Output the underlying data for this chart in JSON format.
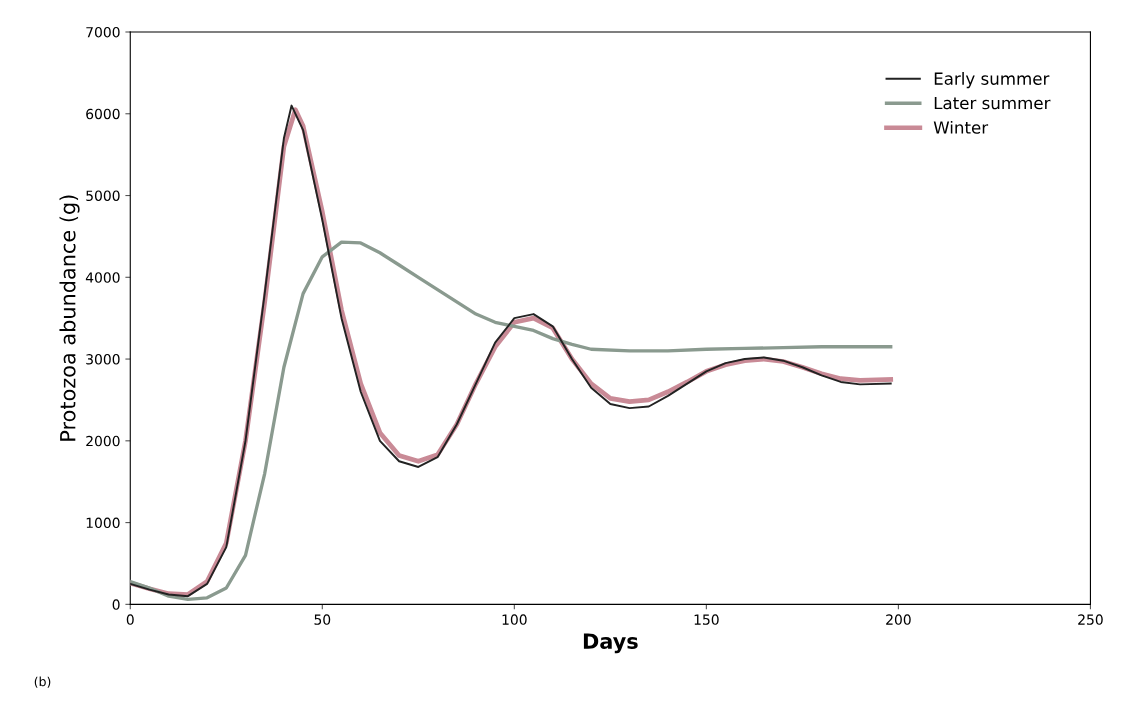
{
  "chart_data": {
    "type": "line",
    "xlabel": "Days",
    "ylabel": "Protozoa abundance (g)",
    "annotations": [
      "(b)"
    ],
    "xlim": [
      0,
      250
    ],
    "xticks": [
      0,
      50,
      100,
      150,
      200,
      250
    ],
    "ylim": [
      0,
      7000
    ],
    "yticks": [
      0,
      1000,
      2000,
      3000,
      4000,
      5000,
      6000,
      7000
    ],
    "grid": false,
    "legend": "top right",
    "series": [
      {
        "name": "Early summer",
        "color": "#222222",
        "x": [
          0,
          5,
          10,
          15,
          20,
          25,
          30,
          35,
          40,
          42,
          45,
          50,
          55,
          60,
          65,
          70,
          75,
          80,
          85,
          90,
          95,
          100,
          105,
          110,
          115,
          120,
          125,
          130,
          135,
          140,
          145,
          150,
          155,
          160,
          165,
          170,
          175,
          180,
          185,
          190,
          198
        ],
        "values": [
          250,
          180,
          120,
          100,
          250,
          700,
          2000,
          3800,
          5700,
          6100,
          5800,
          4700,
          3500,
          2600,
          2000,
          1750,
          1680,
          1800,
          2200,
          2700,
          3200,
          3500,
          3550,
          3400,
          3000,
          2650,
          2450,
          2400,
          2420,
          2550,
          2700,
          2850,
          2950,
          3000,
          3020,
          2980,
          2900,
          2800,
          2720,
          2690,
          2700
        ]
      },
      {
        "name": "Later summer",
        "color": "#8a9a8f",
        "x": [
          0,
          5,
          10,
          15,
          20,
          25,
          30,
          35,
          40,
          45,
          50,
          55,
          60,
          65,
          70,
          75,
          80,
          85,
          90,
          95,
          100,
          105,
          110,
          115,
          120,
          130,
          140,
          150,
          160,
          170,
          180,
          198
        ],
        "values": [
          280,
          200,
          100,
          60,
          80,
          200,
          600,
          1600,
          2900,
          3800,
          4250,
          4430,
          4420,
          4300,
          4150,
          4000,
          3850,
          3700,
          3550,
          3450,
          3400,
          3350,
          3250,
          3180,
          3120,
          3100,
          3100,
          3120,
          3130,
          3140,
          3150,
          3150
        ]
      },
      {
        "name": "Winter",
        "color": "#c98a96",
        "x": [
          0,
          5,
          10,
          15,
          20,
          25,
          30,
          35,
          40,
          43,
          45,
          50,
          55,
          60,
          65,
          70,
          75,
          80,
          85,
          90,
          95,
          100,
          105,
          110,
          115,
          120,
          125,
          130,
          135,
          140,
          145,
          150,
          155,
          160,
          165,
          170,
          175,
          180,
          185,
          190,
          198
        ],
        "values": [
          260,
          190,
          130,
          120,
          280,
          750,
          2000,
          3700,
          5600,
          6050,
          5850,
          4800,
          3600,
          2700,
          2100,
          1820,
          1750,
          1830,
          2200,
          2700,
          3150,
          3450,
          3500,
          3380,
          3000,
          2700,
          2520,
          2480,
          2500,
          2600,
          2720,
          2850,
          2930,
          2980,
          3000,
          2970,
          2900,
          2820,
          2760,
          2740,
          2750
        ]
      }
    ]
  }
}
